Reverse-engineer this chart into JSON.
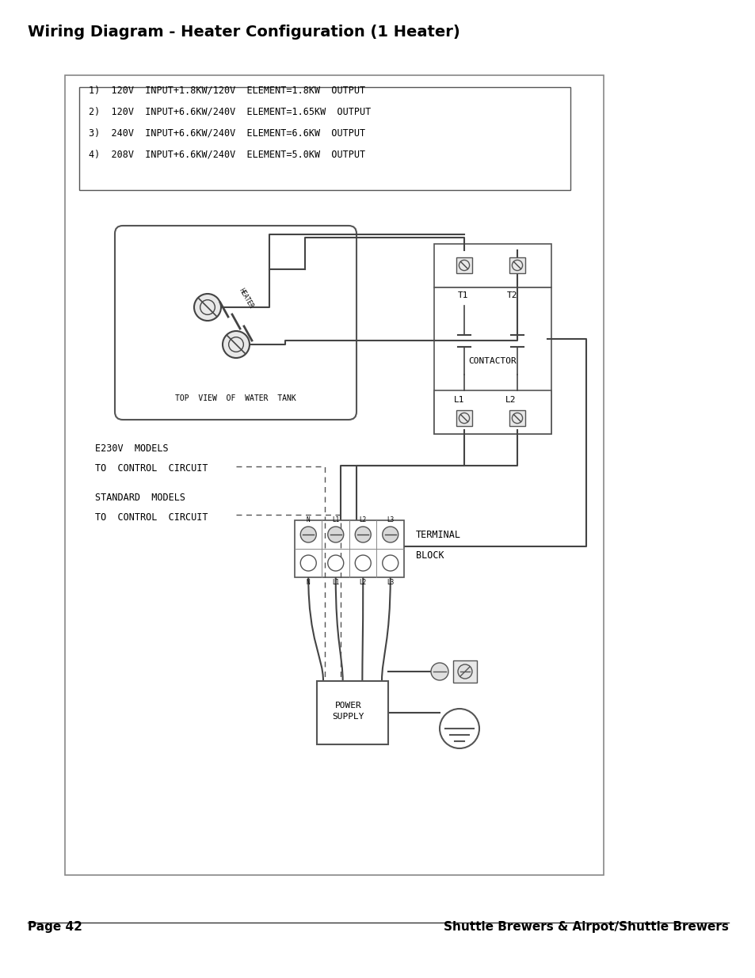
{
  "title": "Wiring Diagram - Heater Configuration (1 Heater)",
  "page_left": "Page 42",
  "page_right": "Shuttle Brewers & Airpot/Shuttle Brewers",
  "spec_lines": [
    "1)  120V  INPUT+1.8KW/120V  ELEMENT=1.8KW  OUTPUT",
    "2)  120V  INPUT+6.6KW/240V  ELEMENT=1.65KW  OUTPUT",
    "3)  240V  INPUT+6.6KW/240V  ELEMENT=6.6KW  OUTPUT",
    "4)  208V  INPUT+6.6KW/240V  ELEMENT=5.0KW  OUTPUT"
  ],
  "bg_color": "#ffffff",
  "border_color": "#000000",
  "text_color": "#000000"
}
